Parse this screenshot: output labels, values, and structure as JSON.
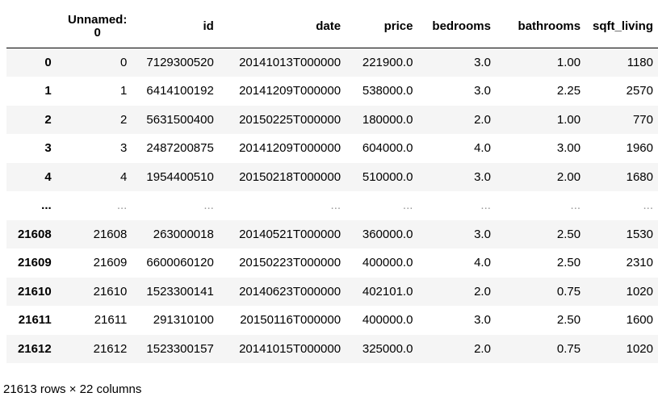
{
  "table": {
    "header": {
      "index_label": "",
      "columns": [
        "Unnamed:\n0",
        "id",
        "date",
        "price",
        "bedrooms",
        "bathrooms",
        "sqft_living"
      ]
    },
    "rows": [
      {
        "index": "0",
        "cells": [
          "0",
          "7129300520",
          "20141013T000000",
          "221900.0",
          "3.0",
          "1.00",
          "1180"
        ]
      },
      {
        "index": "1",
        "cells": [
          "1",
          "6414100192",
          "20141209T000000",
          "538000.0",
          "3.0",
          "2.25",
          "2570"
        ]
      },
      {
        "index": "2",
        "cells": [
          "2",
          "5631500400",
          "20150225T000000",
          "180000.0",
          "2.0",
          "1.00",
          "770"
        ]
      },
      {
        "index": "3",
        "cells": [
          "3",
          "2487200875",
          "20141209T000000",
          "604000.0",
          "4.0",
          "3.00",
          "1960"
        ]
      },
      {
        "index": "4",
        "cells": [
          "4",
          "1954400510",
          "20150218T000000",
          "510000.0",
          "3.0",
          "2.00",
          "1680"
        ]
      },
      {
        "index": "...",
        "cells": [
          "...",
          "...",
          "...",
          "...",
          "...",
          "...",
          "..."
        ],
        "ellipsis": true
      },
      {
        "index": "21608",
        "cells": [
          "21608",
          "263000018",
          "20140521T000000",
          "360000.0",
          "3.0",
          "2.50",
          "1530"
        ]
      },
      {
        "index": "21609",
        "cells": [
          "21609",
          "6600060120",
          "20150223T000000",
          "400000.0",
          "4.0",
          "2.50",
          "2310"
        ]
      },
      {
        "index": "21610",
        "cells": [
          "21610",
          "1523300141",
          "20140623T000000",
          "402101.0",
          "2.0",
          "0.75",
          "1020"
        ]
      },
      {
        "index": "21611",
        "cells": [
          "21611",
          "291310100",
          "20150116T000000",
          "400000.0",
          "3.0",
          "2.50",
          "1600"
        ]
      },
      {
        "index": "21612",
        "cells": [
          "21612",
          "1523300157",
          "20141015T000000",
          "325000.0",
          "2.0",
          "0.75",
          "1020"
        ]
      }
    ]
  },
  "summary": "21613 rows × 22 columns",
  "colors": {
    "stripe": "#f5f5f5",
    "ellipsis_text": "#9a9a9a"
  }
}
